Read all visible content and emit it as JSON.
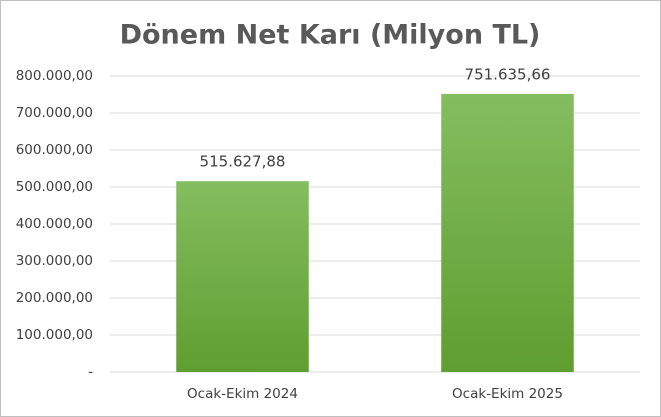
{
  "chart_data": {
    "type": "bar",
    "title": "Dönem Net Karı (Milyon TL)",
    "categories": [
      "Ocak-Ekim 2024",
      "Ocak-Ekim 2025"
    ],
    "values": [
      515627.88,
      751635.66
    ],
    "value_labels": [
      "515.627,88",
      "751.635,66"
    ],
    "color": "#6aab3e",
    "ylim": [
      0,
      800000
    ],
    "yticks": [
      {
        "value": 0,
        "label": "-"
      },
      {
        "value": 100000,
        "label": "100.000,00"
      },
      {
        "value": 200000,
        "label": "200.000,00"
      },
      {
        "value": 300000,
        "label": "300.000,00"
      },
      {
        "value": 400000,
        "label": "400.000,00"
      },
      {
        "value": 500000,
        "label": "500.000,00"
      },
      {
        "value": 600000,
        "label": "600.000,00"
      },
      {
        "value": 700000,
        "label": "700.000,00"
      },
      {
        "value": 800000,
        "label": "800.000,00"
      }
    ],
    "grid": true
  }
}
